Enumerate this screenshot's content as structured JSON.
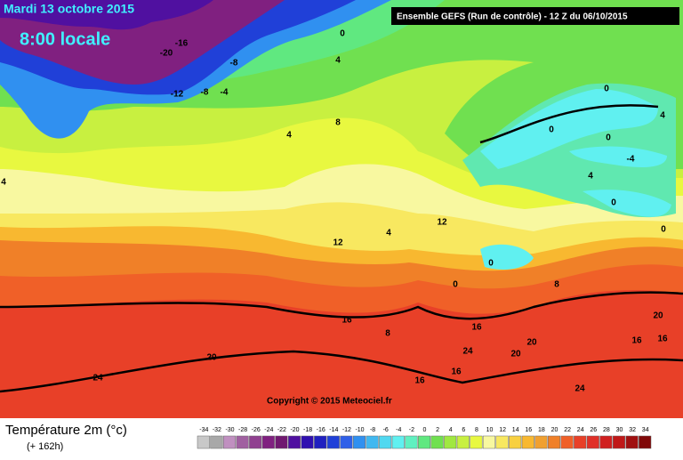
{
  "title": "Mardi 13 octobre 2015",
  "subtitle": "8:00 locale",
  "run_info": "Ensemble GEFS  (Run de contrôle)  - 12 Z du 06/10/2015",
  "copyright": "Copyright © 2015 Meteociel.fr",
  "variable": "Température 2m (°c)",
  "lead_time": "(+ 162h)",
  "contour_labels": [
    -20,
    -16,
    -12,
    -8,
    -8,
    -4,
    0,
    4,
    8,
    4,
    12,
    12,
    16,
    20,
    24,
    24,
    20,
    20,
    16,
    16,
    16,
    16,
    0,
    0,
    0,
    4,
    4,
    0,
    0,
    0,
    0,
    8,
    4,
    8,
    16,
    20,
    24,
    -4,
    4
  ],
  "legend": {
    "values": [
      -34,
      -32,
      -30,
      -28,
      -26,
      -24,
      -22,
      -20,
      -18,
      -16,
      -14,
      -12,
      -10,
      -8,
      -6,
      -4,
      -2,
      0,
      2,
      4,
      6,
      8,
      10,
      12,
      14,
      16,
      18,
      20,
      22,
      24,
      26,
      28,
      30,
      32,
      34
    ],
    "colors": [
      "#c8c8c8",
      "#a8a8a8",
      "#c090c0",
      "#a060a0",
      "#904090",
      "#802080",
      "#701870",
      "#5010a0",
      "#3010b0",
      "#2020c0",
      "#2040d8",
      "#3060e8",
      "#3090f0",
      "#40b8f0",
      "#50d8f0",
      "#60f0f0",
      "#60f0c0",
      "#60e880",
      "#70e050",
      "#a0e840",
      "#c8f040",
      "#e8f840",
      "#f8f8a0",
      "#f8e860",
      "#f8d040",
      "#f8b830",
      "#f0a030",
      "#f08028",
      "#f06028",
      "#e84028",
      "#e03028",
      "#d02020",
      "#c01818",
      "#a01010",
      "#800808"
    ]
  }
}
